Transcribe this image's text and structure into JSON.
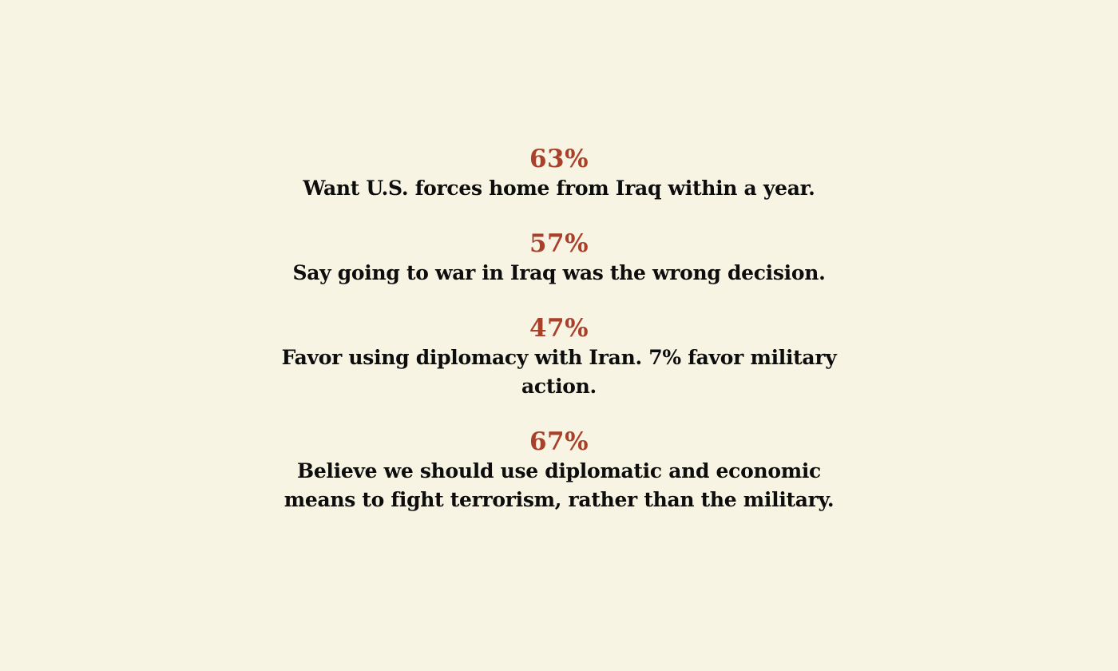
{
  "stats": [
    {
      "value": "63%",
      "text": "Want U.S. forces home from Iraq within a year."
    },
    {
      "value": "57%",
      "text": "Say going to war in Iraq was the wrong decision."
    },
    {
      "value": "47%",
      "text": "Favor using diplomacy with Iran. 7% favor military action."
    },
    {
      "value": "67%",
      "text": "Believe we should use diplomatic and economic means to fight terrorism, rather than the military."
    }
  ],
  "colors": {
    "background": "#f8f4e4",
    "accent": "#a8402a",
    "text": "#0d0d0d"
  }
}
